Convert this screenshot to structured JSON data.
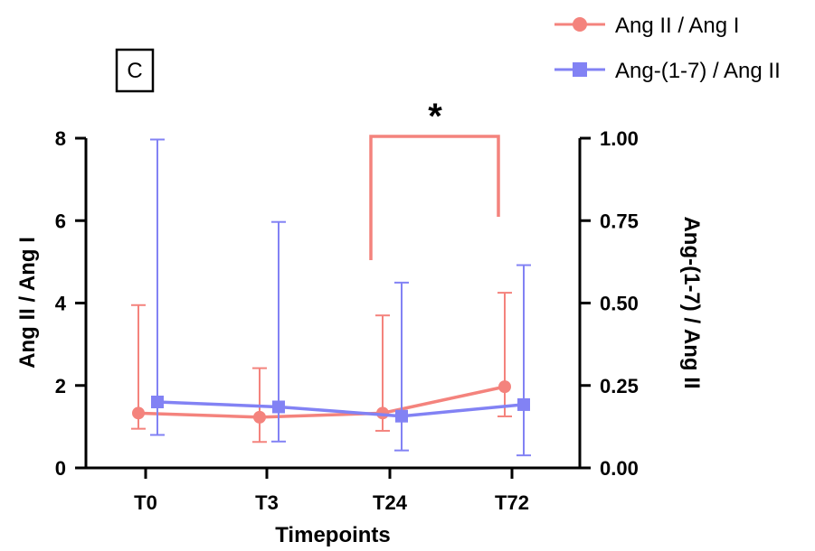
{
  "panel_label": "C",
  "chart_data": {
    "type": "line",
    "xlabel": "Timepoints",
    "ylabel_left": "Ang II / Ang I",
    "ylabel_right": "Ang-(1-7) / Ang II",
    "categories": [
      "T0",
      "T3",
      "T24",
      "T72"
    ],
    "ylim_left": [
      0,
      8
    ],
    "yticks_left": [
      "0",
      "2",
      "4",
      "6",
      "8"
    ],
    "ylim_right": [
      0,
      1
    ],
    "yticks_right": [
      "0.00",
      "0.25",
      "0.50",
      "0.75",
      "1.00"
    ],
    "grid": false,
    "legend_position": "top-right",
    "series": [
      {
        "name": "Ang II / Ang I",
        "axis": "left",
        "color": "#F4837D",
        "marker": "circle",
        "values": [
          1.33,
          1.23,
          1.33,
          1.97
        ],
        "error_low": [
          0.95,
          0.63,
          0.9,
          1.25
        ],
        "error_high": [
          3.95,
          2.42,
          3.7,
          4.25
        ]
      },
      {
        "name": "Ang-(1-7) / Ang II",
        "axis": "right",
        "color": "#8282F4",
        "marker": "square",
        "values": [
          0.2,
          0.185,
          0.157,
          0.192
        ],
        "error_low": [
          0.1,
          0.08,
          0.053,
          0.038
        ],
        "error_high": [
          0.996,
          0.746,
          0.562,
          0.615
        ]
      }
    ],
    "annotations": [
      {
        "text": "*",
        "type": "significance",
        "between": [
          "T24",
          "T72"
        ],
        "series": "Ang II / Ang I"
      }
    ]
  }
}
